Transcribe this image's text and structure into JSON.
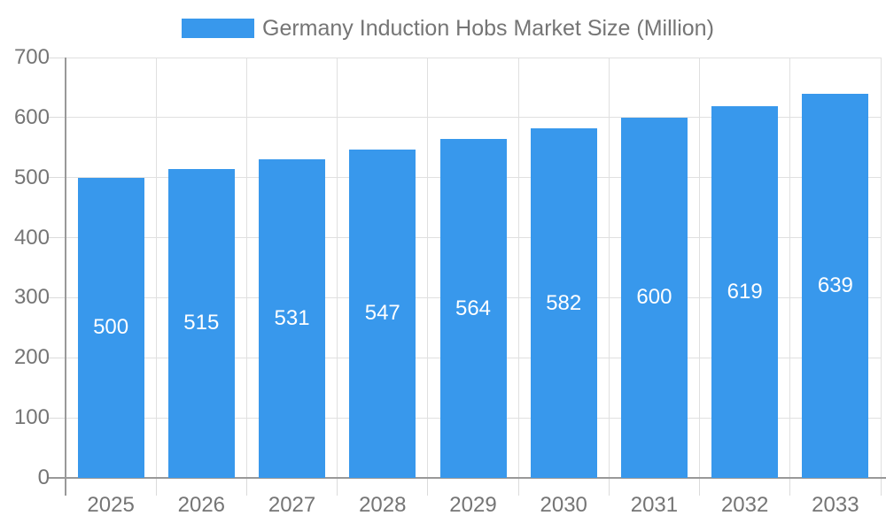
{
  "legend": {
    "label": "Germany Induction Hobs Market Size (Million)"
  },
  "chart_data": {
    "type": "bar",
    "title": "Germany Induction Hobs Market Size (Million)",
    "series_name": "Germany Induction Hobs Market Size (Million)",
    "categories": [
      "2025",
      "2026",
      "2027",
      "2028",
      "2029",
      "2030",
      "2031",
      "2032",
      "2033"
    ],
    "values": [
      500,
      515,
      531,
      547,
      564,
      582,
      600,
      619,
      639
    ],
    "bar_labels": [
      500,
      515,
      531,
      547,
      564,
      582,
      600,
      619,
      639
    ],
    "xlabel": "",
    "ylabel": "",
    "ylim": [
      0,
      700
    ],
    "yticks": [
      0,
      100,
      200,
      300,
      400,
      500,
      600,
      700
    ],
    "grid": true,
    "legend_position": "top-center",
    "colors": {
      "bar": "#3898EC",
      "bar_label": "#FFFFFF",
      "axis_text": "#757575",
      "axis_line": "#999999",
      "grid_line": "#E0E0E0",
      "tick": "#DBDBDB",
      "background": "#FFFFFF"
    }
  }
}
